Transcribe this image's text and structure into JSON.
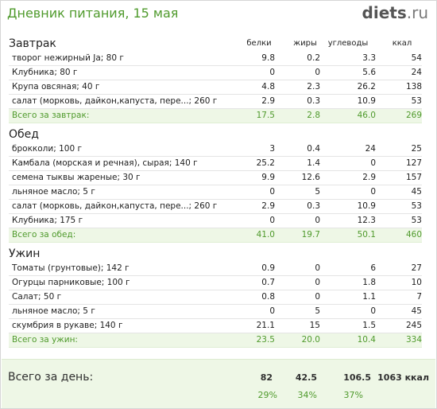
{
  "header": {
    "title": "Дневник питания, 15 мая",
    "logo_main": "diets",
    "logo_tld": ".ru"
  },
  "columns": [
    "белки",
    "жиры",
    "углеводы",
    "ккал"
  ],
  "sections": [
    {
      "title": "Завтрак",
      "items": [
        {
          "name": "творог нежирный Ja; 80 г",
          "b": "9.8",
          "z": "0.2",
          "u": "3.3",
          "k": "54"
        },
        {
          "name": "Клубника; 80 г",
          "b": "0",
          "z": "0",
          "u": "5.6",
          "k": "24"
        },
        {
          "name": "Крупа овсяная; 40 г",
          "b": "4.8",
          "z": "2.3",
          "u": "26.2",
          "k": "138"
        },
        {
          "name": "салат (морковь, дайкон,капуста, пере...; 260 г",
          "b": "2.9",
          "z": "0.3",
          "u": "10.9",
          "k": "53"
        }
      ],
      "total": {
        "label": "Всего за завтрак:",
        "b": "17.5",
        "z": "2.8",
        "u": "46.0",
        "k": "269"
      }
    },
    {
      "title": "Обед",
      "items": [
        {
          "name": "брокколи; 100 г",
          "b": "3",
          "z": "0.4",
          "u": "24",
          "k": "25"
        },
        {
          "name": "Камбала (морская и речная), сырая; 140 г",
          "b": "25.2",
          "z": "1.4",
          "u": "0",
          "k": "127"
        },
        {
          "name": "семена тыквы жареные; 30 г",
          "b": "9.9",
          "z": "12.6",
          "u": "2.9",
          "k": "157"
        },
        {
          "name": "льняное масло; 5 г",
          "b": "0",
          "z": "5",
          "u": "0",
          "k": "45"
        },
        {
          "name": "салат (морковь, дайкон,капуста, пере...; 260 г",
          "b": "2.9",
          "z": "0.3",
          "u": "10.9",
          "k": "53"
        },
        {
          "name": "Клубника; 175 г",
          "b": "0",
          "z": "0",
          "u": "12.3",
          "k": "53"
        }
      ],
      "total": {
        "label": "Всего за обед:",
        "b": "41.0",
        "z": "19.7",
        "u": "50.1",
        "k": "460"
      }
    },
    {
      "title": "Ужин",
      "items": [
        {
          "name": "Томаты (грунтовые); 142 г",
          "b": "0.9",
          "z": "0",
          "u": "6",
          "k": "27"
        },
        {
          "name": "Огурцы парниковые; 100 г",
          "b": "0.7",
          "z": "0",
          "u": "1.8",
          "k": "10"
        },
        {
          "name": "Салат; 50 г",
          "b": "0.8",
          "z": "0",
          "u": "1.1",
          "k": "7"
        },
        {
          "name": "льняное масло; 5 г",
          "b": "0",
          "z": "5",
          "u": "0",
          "k": "45"
        },
        {
          "name": "скумбрия в рукаве; 140 г",
          "b": "21.1",
          "z": "15",
          "u": "1.5",
          "k": "245"
        }
      ],
      "total": {
        "label": "Всего за ужин:",
        "b": "23.5",
        "z": "20.0",
        "u": "10.4",
        "k": "334"
      }
    }
  ],
  "day_total": {
    "label": "Всего за день:",
    "b": "82",
    "z": "42.5",
    "u": "106.5",
    "k": "1063 ккал",
    "pb": "29%",
    "pz": "34%",
    "pu": "37%"
  }
}
